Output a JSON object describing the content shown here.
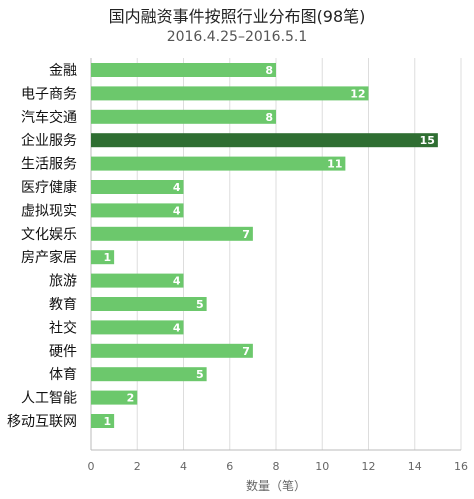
{
  "chart_data": {
    "type": "bar",
    "orientation": "horizontal",
    "title": "国内融资事件按照行业分布图(98笔)",
    "subtitle": "2016.4.25–2016.5.1",
    "xlabel": "数量（笔）",
    "ylabel": "",
    "xlim": [
      0,
      16
    ],
    "xticks": [
      0,
      2,
      4,
      6,
      8,
      10,
      12,
      14,
      16
    ],
    "grid": true,
    "categories": [
      "金融",
      "电子商务",
      "汽车交通",
      "企业服务",
      "生活服务",
      "医疗健康",
      "虚拟现实",
      "文化娱乐",
      "房产家居",
      "旅游",
      "教育",
      "社交",
      "硬件",
      "体育",
      "人工智能",
      "移动互联网"
    ],
    "values": [
      8,
      12,
      8,
      15,
      11,
      4,
      4,
      7,
      1,
      4,
      5,
      4,
      7,
      5,
      2,
      1
    ],
    "highlight_index": 3,
    "colors": {
      "bar": "#6cc86c",
      "highlight": "#2f6e32",
      "grid": "#dddddd",
      "axis": "#bbbbbb"
    }
  }
}
